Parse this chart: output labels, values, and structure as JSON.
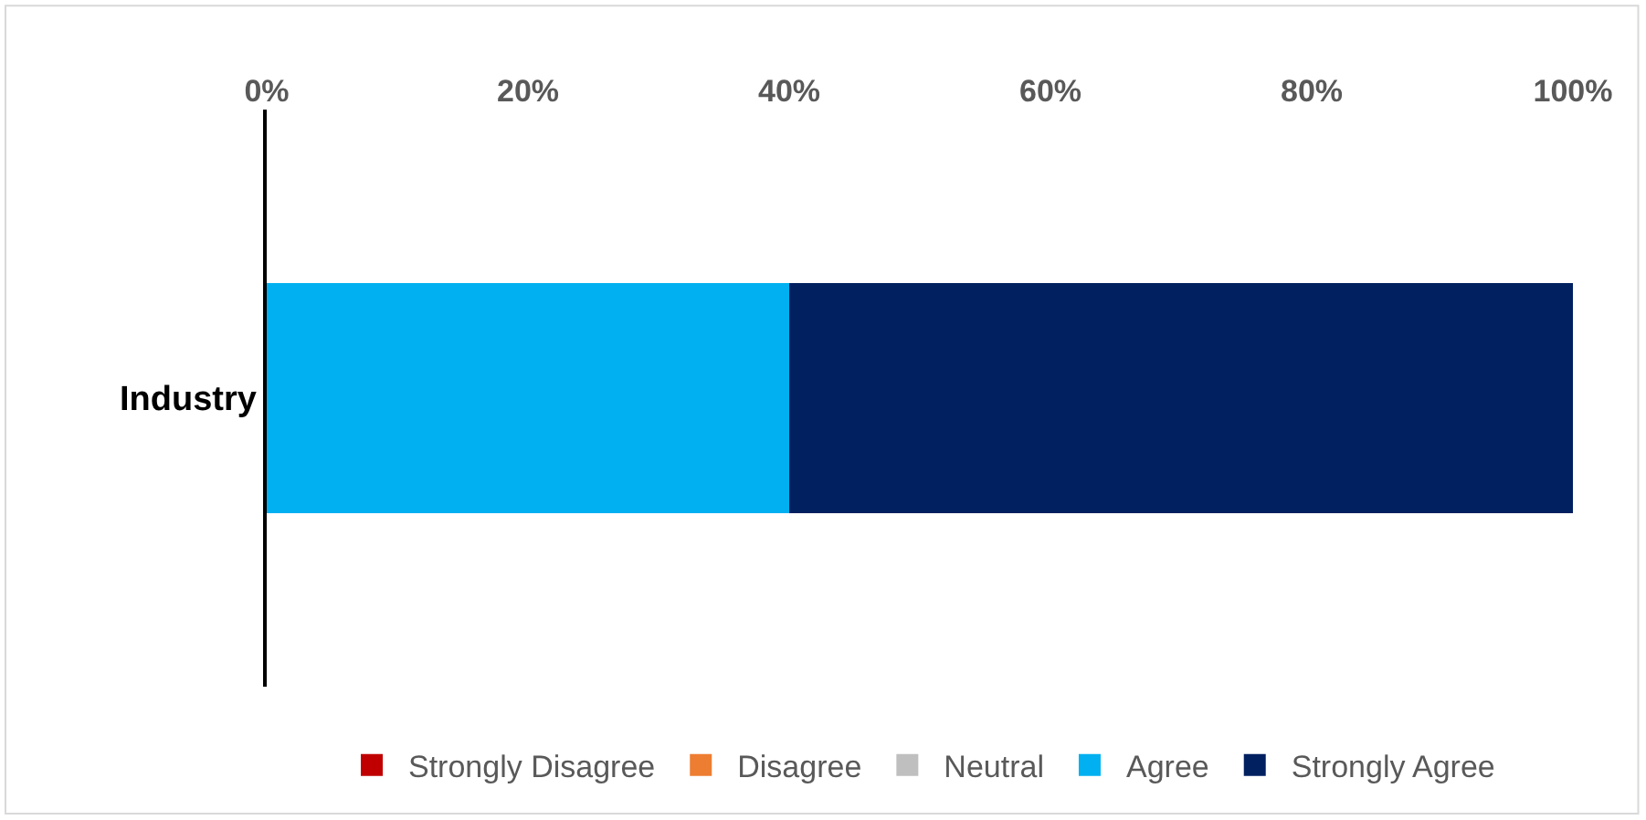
{
  "chart_data": {
    "type": "bar",
    "orientation": "horizontal",
    "stacked": true,
    "categories": [
      "Industry"
    ],
    "series": [
      {
        "name": "Strongly Disagree",
        "color": "#c00000",
        "values": [
          0
        ]
      },
      {
        "name": "Disagree",
        "color": "#ed7d31",
        "values": [
          0
        ]
      },
      {
        "name": "Neutral",
        "color": "#bfbfbf",
        "values": [
          0
        ]
      },
      {
        "name": "Agree",
        "color": "#00b0f0",
        "values": [
          40
        ]
      },
      {
        "name": "Strongly Agree",
        "color": "#002060",
        "values": [
          60
        ]
      }
    ],
    "xlim": [
      0,
      100
    ],
    "xticks": [
      {
        "value": 0,
        "label": "0%"
      },
      {
        "value": 20,
        "label": "20%"
      },
      {
        "value": 40,
        "label": "40%"
      },
      {
        "value": 60,
        "label": "60%"
      },
      {
        "value": 80,
        "label": "80%"
      },
      {
        "value": 100,
        "label": "100%"
      }
    ],
    "legend": "bottom"
  }
}
